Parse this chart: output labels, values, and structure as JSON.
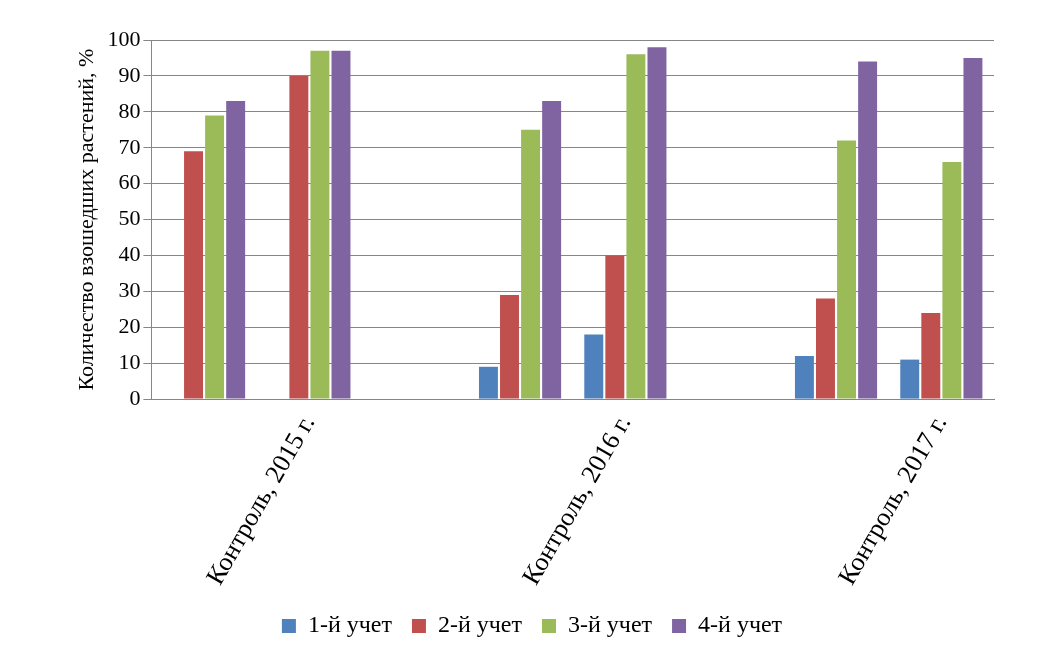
{
  "chart_data": {
    "type": "bar",
    "ylabel": "Количество взошедших растений, %",
    "categories": [
      null,
      "Контроль, 2015 г.",
      null,
      null,
      "Контроль, 2016 г.",
      null,
      null,
      "Контроль, 2017 г."
    ],
    "series": [
      {
        "name": "1-й учет",
        "color": "#4f81bd",
        "values": [
          null,
          null,
          null,
          9,
          18,
          null,
          12,
          11
        ]
      },
      {
        "name": "2-й учет",
        "color": "#c0504d",
        "values": [
          69,
          90,
          null,
          29,
          40,
          null,
          28,
          24
        ]
      },
      {
        "name": "3-й учет",
        "color": "#9bbb59",
        "values": [
          79,
          97,
          null,
          75,
          96,
          null,
          72,
          66
        ]
      },
      {
        "name": "4-й учет",
        "color": "#8064a2",
        "values": [
          83,
          97,
          null,
          83,
          98,
          null,
          94,
          95
        ]
      }
    ],
    "ylim": [
      0,
      100
    ],
    "yticks": [
      0,
      10,
      20,
      30,
      40,
      50,
      60,
      70,
      80,
      90,
      100
    ],
    "grid": "y",
    "legend": "bottom"
  }
}
